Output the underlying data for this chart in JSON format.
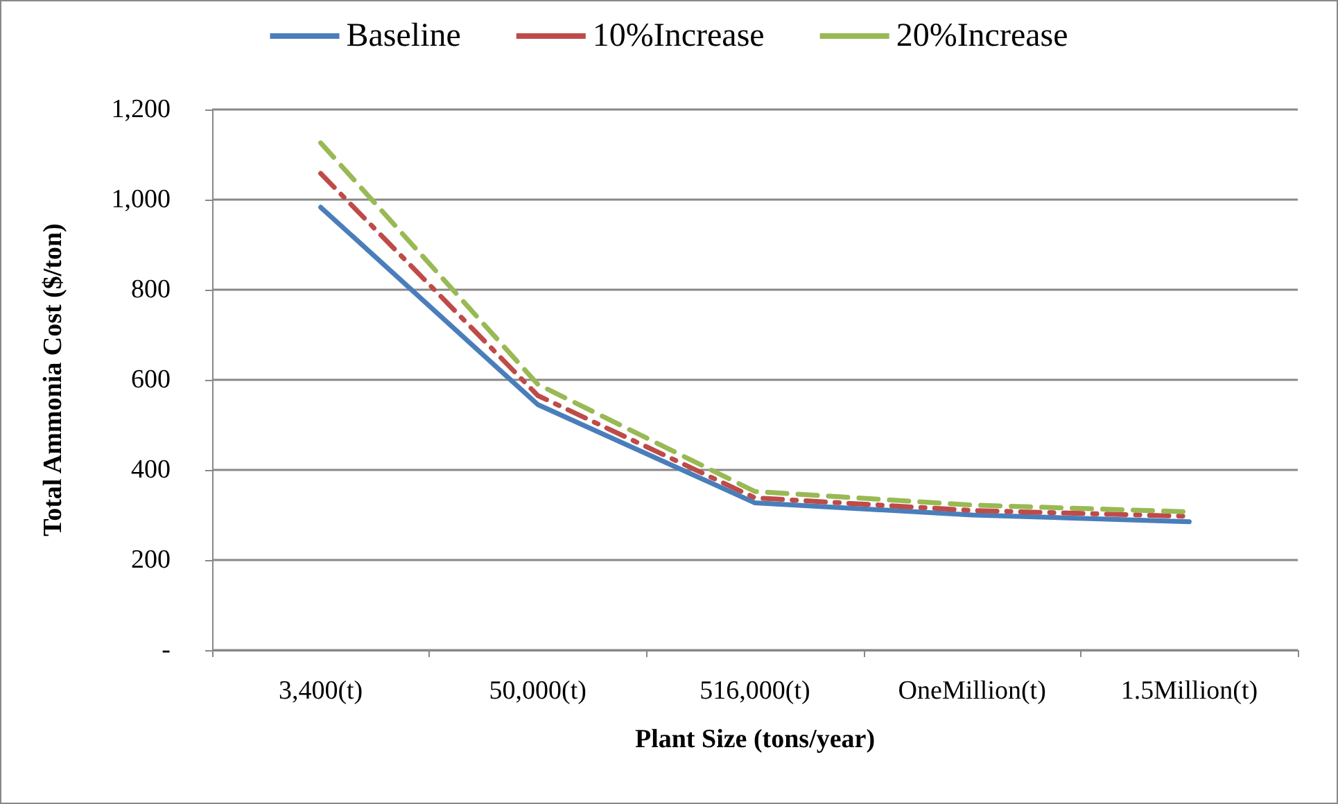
{
  "chart_data": {
    "type": "line",
    "xlabel": "Plant Size (tons/year)",
    "ylabel": "Total Ammonia Cost ($/ton)",
    "categories": [
      "3,400(t)",
      "50,000(t)",
      "516,000(t)",
      "OneMillion(t)",
      "1.5Million(t)"
    ],
    "series": [
      {
        "name": "Baseline",
        "color": "#4a7ebb",
        "line_style": "solid",
        "values": [
          983,
          545,
          327,
          300,
          285
        ]
      },
      {
        "name": "10%Increase",
        "color": "#be4b48",
        "line_style": "dashdot",
        "values": [
          1058,
          565,
          338,
          310,
          297
        ]
      },
      {
        "name": "20%Increase",
        "color": "#98b954",
        "line_style": "dashed",
        "values": [
          1126,
          590,
          352,
          322,
          307
        ]
      }
    ],
    "ylim": [
      0,
      1200
    ],
    "yticks": [
      {
        "value": 0,
        "label": "-"
      },
      {
        "value": 200,
        "label": "200"
      },
      {
        "value": 400,
        "label": "400"
      },
      {
        "value": 600,
        "label": "600"
      },
      {
        "value": 800,
        "label": "800"
      },
      {
        "value": 1000,
        "label": "1,000"
      },
      {
        "value": 1200,
        "label": "1,200"
      }
    ],
    "grid": "y",
    "legend": "top",
    "marker": "none"
  }
}
